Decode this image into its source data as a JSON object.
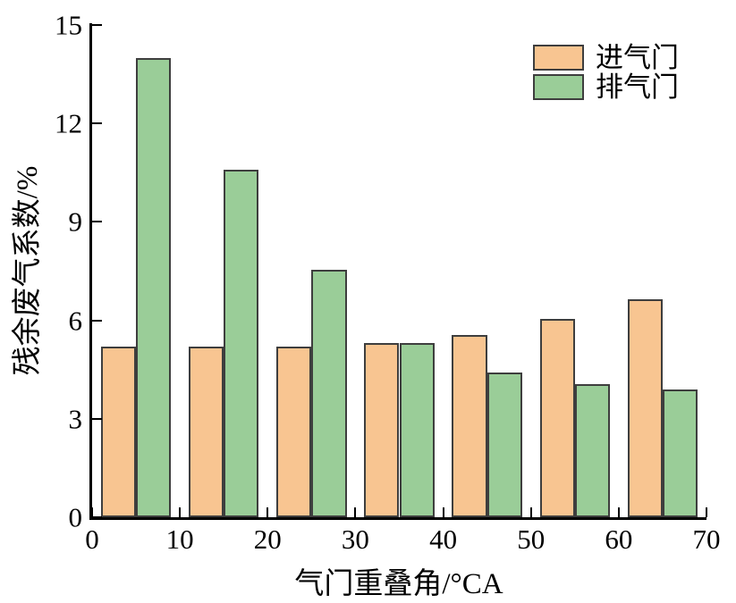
{
  "chart_data": {
    "type": "bar",
    "title": "",
    "xlabel": "气门重叠角/°CA",
    "ylabel": "残余废气系数/%",
    "xlim": [
      0,
      70
    ],
    "ylim": [
      0,
      15
    ],
    "x_ticks": [
      0,
      10,
      20,
      30,
      40,
      50,
      60,
      70
    ],
    "y_ticks": [
      0,
      3,
      6,
      9,
      12,
      15
    ],
    "grid": false,
    "legend_position": "top-right-inside",
    "group_centers": [
      5,
      15,
      25,
      35,
      45,
      55,
      65
    ],
    "series": [
      {
        "name": "进气门",
        "color": "#F8C591",
        "values": [
          5.2,
          5.2,
          5.2,
          5.3,
          5.55,
          6.05,
          6.65
        ]
      },
      {
        "name": "排气门",
        "color": "#9ACD98",
        "values": [
          14.0,
          10.6,
          7.55,
          5.3,
          4.4,
          4.05,
          3.9
        ]
      }
    ],
    "bar_border_color": "#3e3e3e",
    "axis_color": "#000000"
  }
}
